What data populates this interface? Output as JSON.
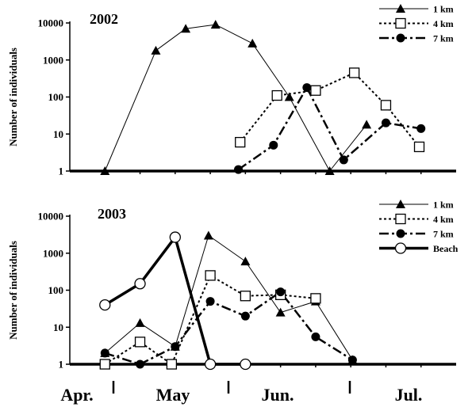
{
  "chart_data": [
    {
      "type": "line",
      "title": "2002",
      "ylabel": "Number of individuals",
      "yscale": "log",
      "ylim": [
        1,
        10000
      ],
      "yticks": [
        "1",
        "10",
        "100",
        "1000",
        "10000"
      ],
      "legend_position": "top-right",
      "series": [
        {
          "name": "1 km",
          "marker": "filled-triangle",
          "line": "solid-thin",
          "x": [
            1.0,
            2.45,
            3.3,
            4.15,
            5.2,
            6.25,
            7.4,
            8.45
          ],
          "y": [
            1,
            1800,
            7000,
            9000,
            2800,
            100,
            1,
            18
          ]
        },
        {
          "name": "4 km",
          "marker": "open-square",
          "line": "dotted",
          "x": [
            4.85,
            5.9,
            7.0,
            8.1,
            9.0,
            9.95
          ],
          "y": [
            6,
            110,
            150,
            450,
            60,
            4.5
          ]
        },
        {
          "name": "7 km",
          "marker": "filled-circle",
          "line": "dash-dot",
          "x": [
            4.8,
            5.8,
            6.75,
            7.8,
            9.0,
            10.0
          ],
          "y": [
            1.1,
            5,
            180,
            2,
            20,
            14
          ]
        }
      ]
    },
    {
      "type": "line",
      "title": "2003",
      "ylabel": "Number of individuals",
      "yscale": "log",
      "ylim": [
        1,
        10000
      ],
      "yticks": [
        "1",
        "10",
        "100",
        "1000",
        "10000"
      ],
      "legend_position": "top-right",
      "series": [
        {
          "name": "1 km",
          "marker": "filled-triangle",
          "line": "solid-thin",
          "x": [
            1.0,
            2.0,
            3.0,
            3.95,
            5.0,
            6.0,
            7.0,
            8.05
          ],
          "y": [
            2,
            13,
            3,
            3000,
            600,
            25,
            50,
            1.3
          ]
        },
        {
          "name": "4 km",
          "marker": "open-square",
          "line": "dotted",
          "x": [
            1.0,
            2.0,
            2.9,
            4.0,
            5.0,
            6.0,
            7.0
          ],
          "y": [
            1,
            4,
            1,
            250,
            70,
            75,
            60
          ]
        },
        {
          "name": "7 km",
          "marker": "filled-circle",
          "line": "dash-dot",
          "x": [
            1.0,
            2.0,
            3.0,
            4.0,
            5.0,
            6.0,
            7.0,
            8.05
          ],
          "y": [
            2,
            1,
            3,
            50,
            20,
            90,
            5.5,
            1.3
          ]
        },
        {
          "name": "Beach",
          "marker": "open-circle",
          "line": "solid-thick",
          "x": [
            1.0,
            2.0,
            3.0,
            4.0,
            5.0
          ],
          "y": [
            40,
            150,
            2700,
            1,
            1
          ]
        }
      ]
    }
  ],
  "x_axis": {
    "months": [
      "Apr.",
      "May",
      "Jun.",
      "Jul."
    ],
    "xlim": [
      0,
      11
    ]
  }
}
